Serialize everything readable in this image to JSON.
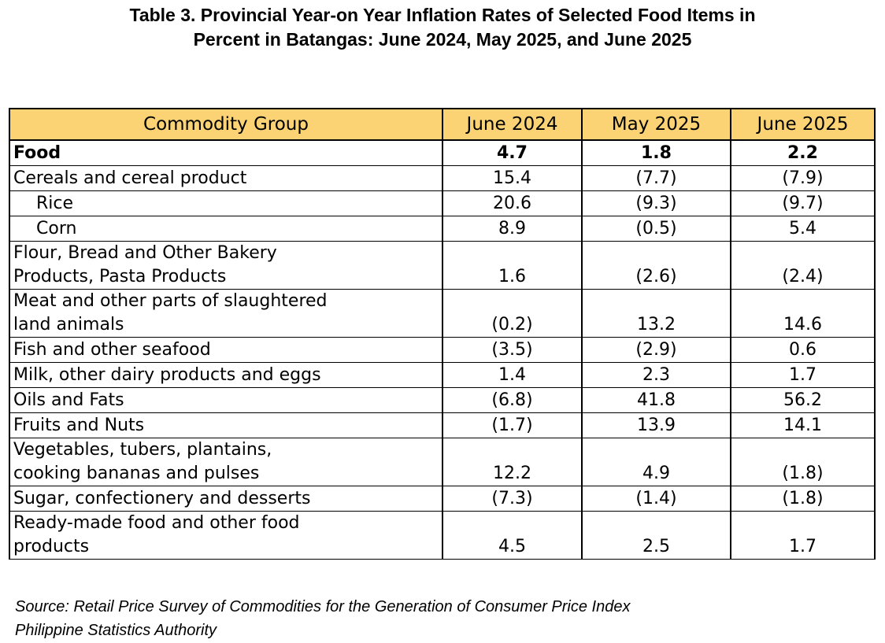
{
  "title": {
    "line1": "Table 3. Provincial Year-on Year Inflation Rates of Selected Food Items in",
    "line2": "Percent in Batangas: June 2024, May 2025, and June 2025"
  },
  "table": {
    "headers": [
      "Commodity Group",
      "June 2024",
      "May 2025",
      "June 2025"
    ],
    "rows": [
      {
        "name": [
          "Food"
        ],
        "v": [
          "4.7",
          "1.8",
          "2.2"
        ]
      },
      {
        "name": [
          "Cereals and cereal product"
        ],
        "v": [
          "15.4",
          "(7.7)",
          "(7.9)"
        ]
      },
      {
        "name": [
          "Rice"
        ],
        "v": [
          "20.6",
          "(9.3)",
          "(9.7)"
        ]
      },
      {
        "name": [
          "Corn"
        ],
        "v": [
          "8.9",
          "(0.5)",
          "5.4"
        ]
      },
      {
        "name": [
          "Flour, Bread and Other Bakery",
          "Products, Pasta Products"
        ],
        "v": [
          "1.6",
          "(2.6)",
          "(2.4)"
        ]
      },
      {
        "name": [
          "Meat and other parts of slaughtered",
          "land animals"
        ],
        "v": [
          "(0.2)",
          "13.2",
          "14.6"
        ]
      },
      {
        "name": [
          "Fish and other seafood"
        ],
        "v": [
          "(3.5)",
          "(2.9)",
          "0.6"
        ]
      },
      {
        "name": [
          "Milk, other dairy products and eggs"
        ],
        "v": [
          "1.4",
          "2.3",
          "1.7"
        ]
      },
      {
        "name": [
          "Oils and Fats"
        ],
        "v": [
          "(6.8)",
          "41.8",
          "56.2"
        ]
      },
      {
        "name": [
          "Fruits and Nuts"
        ],
        "v": [
          "(1.7)",
          "13.9",
          "14.1"
        ]
      },
      {
        "name": [
          "Vegetables, tubers, plantains,",
          "cooking bananas and pulses"
        ],
        "v": [
          "12.2",
          "4.9",
          "(1.8)"
        ]
      },
      {
        "name": [
          "Sugar, confectionery and desserts"
        ],
        "v": [
          "(7.3)",
          "(1.4)",
          "(1.8)"
        ]
      },
      {
        "name": [
          "Ready-made food and other food",
          "products"
        ],
        "v": [
          "4.5",
          "2.5",
          "1.7"
        ]
      }
    ]
  },
  "source": {
    "line1": "Source: Retail Price Survey of Commodities for the Generation of Consumer Price Index",
    "line2": "Philippine Statistics Authority"
  },
  "colors": {
    "header_fill": "#fbd374"
  }
}
